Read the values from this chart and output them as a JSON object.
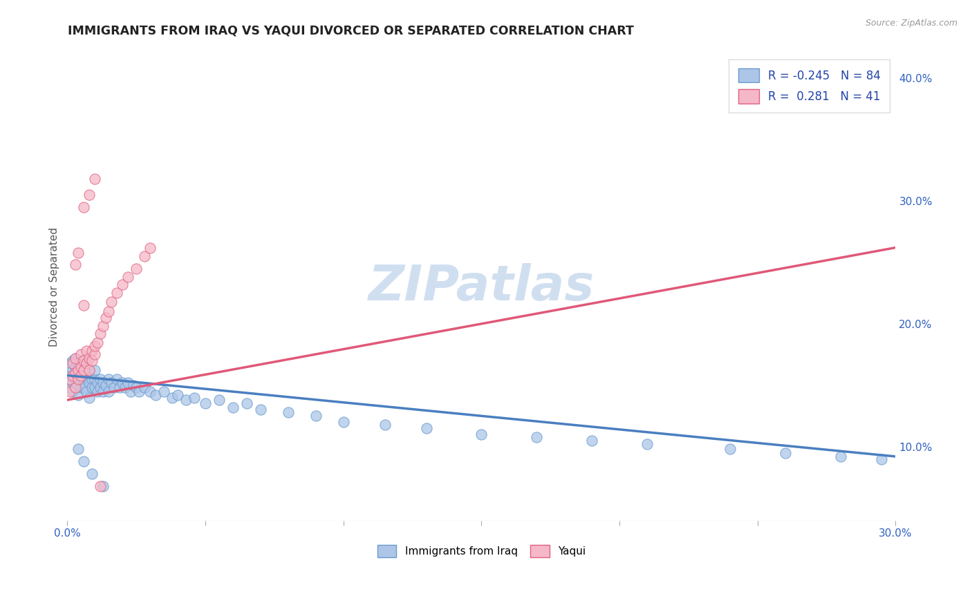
{
  "title": "IMMIGRANTS FROM IRAQ VS YAQUI DIVORCED OR SEPARATED CORRELATION CHART",
  "source_text": "Source: ZipAtlas.com",
  "ylabel": "Divorced or Separated",
  "xmin": 0.0,
  "xmax": 0.3,
  "ymin": 0.04,
  "ymax": 0.42,
  "right_yticks": [
    0.1,
    0.2,
    0.3,
    0.4
  ],
  "right_yticklabels": [
    "10.0%",
    "20.0%",
    "30.0%",
    "40.0%"
  ],
  "xticks": [
    0.0,
    0.05,
    0.1,
    0.15,
    0.2,
    0.25,
    0.3
  ],
  "xticklabels": [
    "0.0%",
    "",
    "",
    "",
    "",
    "",
    "30.0%"
  ],
  "blue_R": -0.245,
  "blue_N": 84,
  "pink_R": 0.281,
  "pink_N": 41,
  "blue_color": "#adc6e8",
  "pink_color": "#f5b8c8",
  "blue_edge_color": "#6699cc",
  "pink_edge_color": "#e06080",
  "blue_line_color": "#4a7fc0",
  "pink_line_color": "#e05878",
  "legend_R_color": "#2244aa",
  "background_color": "#ffffff",
  "grid_color": "#c8d8e8",
  "watermark_text": "ZIPatlas",
  "watermark_color": "#d0dff0",
  "blue_line_start_y": 0.158,
  "blue_line_end_y": 0.092,
  "pink_line_start_y": 0.138,
  "pink_line_end_y": 0.262,
  "blue_scatter_x": [
    0.001,
    0.001,
    0.001,
    0.002,
    0.002,
    0.002,
    0.002,
    0.003,
    0.003,
    0.003,
    0.003,
    0.004,
    0.004,
    0.004,
    0.004,
    0.005,
    0.005,
    0.005,
    0.005,
    0.005,
    0.006,
    0.006,
    0.006,
    0.007,
    0.007,
    0.007,
    0.008,
    0.008,
    0.008,
    0.009,
    0.009,
    0.01,
    0.01,
    0.01,
    0.011,
    0.011,
    0.012,
    0.012,
    0.013,
    0.013,
    0.014,
    0.015,
    0.015,
    0.016,
    0.017,
    0.018,
    0.019,
    0.02,
    0.021,
    0.022,
    0.023,
    0.024,
    0.025,
    0.026,
    0.028,
    0.03,
    0.032,
    0.035,
    0.038,
    0.04,
    0.043,
    0.046,
    0.05,
    0.055,
    0.06,
    0.065,
    0.07,
    0.08,
    0.09,
    0.1,
    0.115,
    0.13,
    0.15,
    0.17,
    0.19,
    0.21,
    0.24,
    0.26,
    0.28,
    0.295,
    0.004,
    0.006,
    0.009,
    0.013
  ],
  "blue_scatter_y": [
    0.158,
    0.148,
    0.168,
    0.152,
    0.162,
    0.145,
    0.17,
    0.155,
    0.165,
    0.148,
    0.172,
    0.158,
    0.15,
    0.165,
    0.142,
    0.16,
    0.155,
    0.148,
    0.163,
    0.17,
    0.155,
    0.148,
    0.162,
    0.158,
    0.145,
    0.165,
    0.152,
    0.162,
    0.14,
    0.155,
    0.148,
    0.155,
    0.148,
    0.162,
    0.152,
    0.145,
    0.155,
    0.148,
    0.152,
    0.145,
    0.15,
    0.155,
    0.145,
    0.152,
    0.148,
    0.155,
    0.148,
    0.152,
    0.148,
    0.152,
    0.145,
    0.15,
    0.148,
    0.145,
    0.148,
    0.145,
    0.142,
    0.145,
    0.14,
    0.142,
    0.138,
    0.14,
    0.135,
    0.138,
    0.132,
    0.135,
    0.13,
    0.128,
    0.125,
    0.12,
    0.118,
    0.115,
    0.11,
    0.108,
    0.105,
    0.102,
    0.098,
    0.095,
    0.092,
    0.09,
    0.098,
    0.088,
    0.078,
    0.068
  ],
  "pink_scatter_x": [
    0.001,
    0.001,
    0.002,
    0.002,
    0.003,
    0.003,
    0.003,
    0.004,
    0.004,
    0.005,
    0.005,
    0.005,
    0.006,
    0.006,
    0.007,
    0.007,
    0.008,
    0.008,
    0.009,
    0.009,
    0.01,
    0.01,
    0.011,
    0.012,
    0.013,
    0.014,
    0.015,
    0.016,
    0.018,
    0.02,
    0.022,
    0.025,
    0.028,
    0.03,
    0.003,
    0.006,
    0.008,
    0.01,
    0.012,
    0.006,
    0.004
  ],
  "pink_scatter_y": [
    0.155,
    0.145,
    0.158,
    0.168,
    0.16,
    0.148,
    0.172,
    0.162,
    0.155,
    0.165,
    0.175,
    0.158,
    0.17,
    0.162,
    0.178,
    0.168,
    0.172,
    0.162,
    0.178,
    0.17,
    0.175,
    0.182,
    0.185,
    0.192,
    0.198,
    0.205,
    0.21,
    0.218,
    0.225,
    0.232,
    0.238,
    0.245,
    0.255,
    0.262,
    0.248,
    0.295,
    0.305,
    0.318,
    0.068,
    0.215,
    0.258
  ]
}
